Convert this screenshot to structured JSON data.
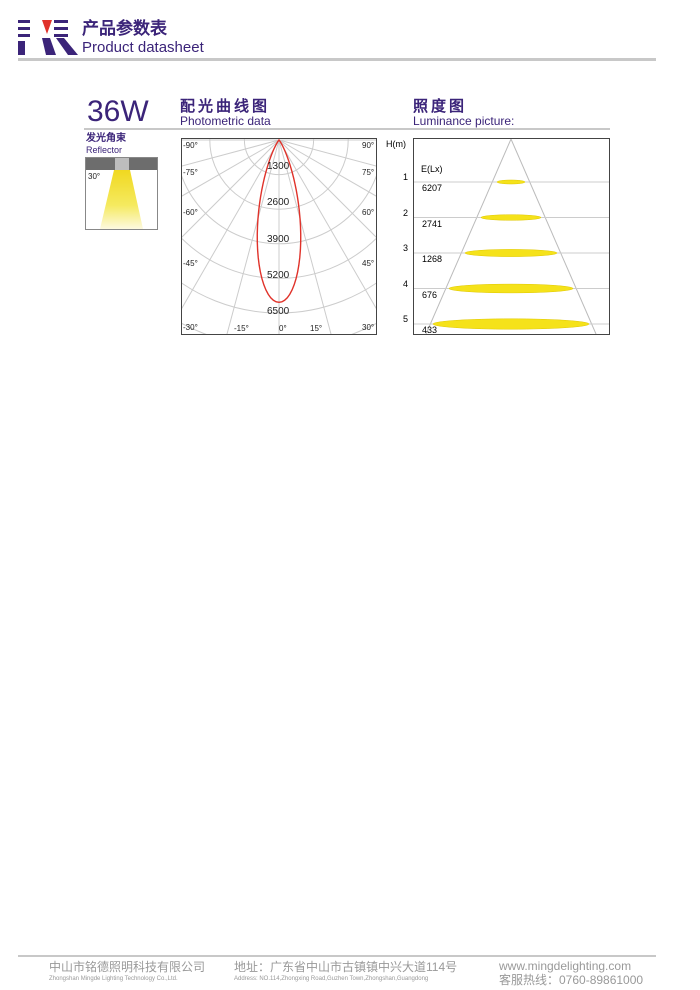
{
  "header": {
    "title_cn": "产品参数表",
    "title_en": "Product datasheet",
    "logo_colors": {
      "primary": "#3b2479",
      "accent": "#e0322a"
    }
  },
  "product": {
    "power": "36W"
  },
  "reflector": {
    "title_cn": "发光角束",
    "title_en": "Reflector",
    "angle": "30°"
  },
  "photometric": {
    "title_cn": "配光曲线图",
    "title_en": "Photometric data",
    "left_angles": [
      "-90°",
      "-75°",
      "-60°",
      "-45°",
      "-30°"
    ],
    "right_angles": [
      "90°",
      "75°",
      "60°",
      "45°",
      "30°"
    ],
    "bottom_angles": [
      "-15°",
      "0°",
      "15°"
    ],
    "ring_labels": [
      "1300",
      "2600",
      "3900",
      "5200",
      "6500"
    ],
    "curve_color": "#e0322a"
  },
  "luminance": {
    "title_cn": "照度图",
    "title_en": "Luminance picture:",
    "h_label": "H(m)",
    "e_label": "E(Lx)",
    "rows": [
      {
        "h": "1",
        "e": "6207"
      },
      {
        "h": "2",
        "e": "2741"
      },
      {
        "h": "3",
        "e": "1268"
      },
      {
        "h": "4",
        "e": "676"
      },
      {
        "h": "5",
        "e": "433"
      }
    ],
    "spot_color": "#f5e21a"
  },
  "footer": {
    "company_cn": "中山市铭德照明科技有限公司",
    "company_en": "Zhongshan Mingde Lighting Technology Co.,Ltd.",
    "address_cn": "地址：广东省中山市古镇镇中兴大道114号",
    "address_en": "Address: NO.114,Zhongxing Road,Guzhen Town,Zhongshan,Guangdong",
    "website": "www.mingdelighting.com",
    "hotline": "客服热线：0760-89861000"
  }
}
